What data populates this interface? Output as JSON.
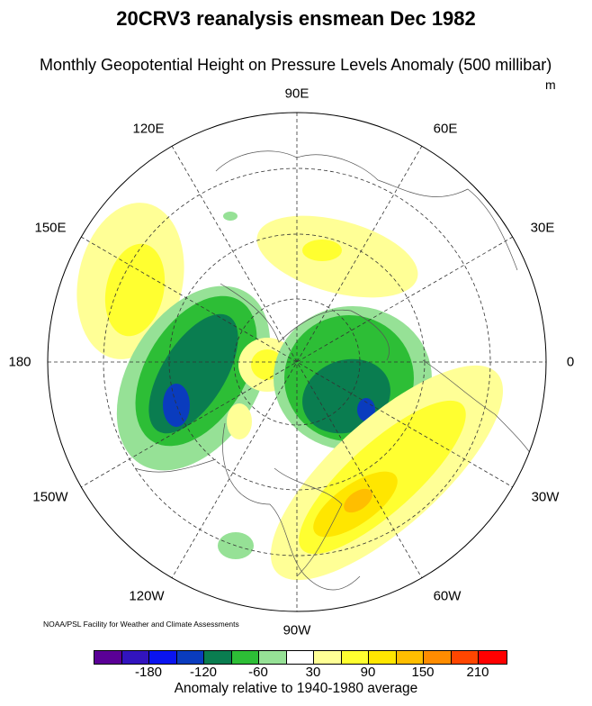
{
  "title": "20CRV3 reanalysis ensmean Dec 1982",
  "subtitle": "Monthly Geopotential Height on Pressure Levels Anomaly (500 millibar)",
  "units": "m",
  "longitude_labels": {
    "e90": "90E",
    "e60": "60E",
    "e120": "120E",
    "e150": "150E",
    "e30": "30E",
    "d180": "180",
    "d0": "0",
    "w150": "150W",
    "w30": "30W",
    "w120": "120W",
    "w60": "60W",
    "w90": "90W"
  },
  "credit": "NOAA/PSL Facility for Weather and Climate Assessments",
  "colorbar": {
    "title": "Anomaly relative to 1940-1980 average",
    "colors": [
      "#5a0096",
      "#3214be",
      "#0a14f0",
      "#0a3cbe",
      "#0a7d50",
      "#2dbe36",
      "#96e196",
      "#ffffff",
      "#ffff96",
      "#ffff30",
      "#ffe600",
      "#ffbe00",
      "#ff8c00",
      "#ff4600",
      "#ff0000"
    ],
    "boundaries": [
      -210,
      -180,
      -150,
      -120,
      -90,
      -60,
      -30,
      30,
      60,
      90,
      120,
      150,
      180,
      210
    ],
    "tick_labels": [
      "-180",
      "-120",
      "-60",
      "30",
      "90",
      "150",
      "210"
    ]
  }
}
